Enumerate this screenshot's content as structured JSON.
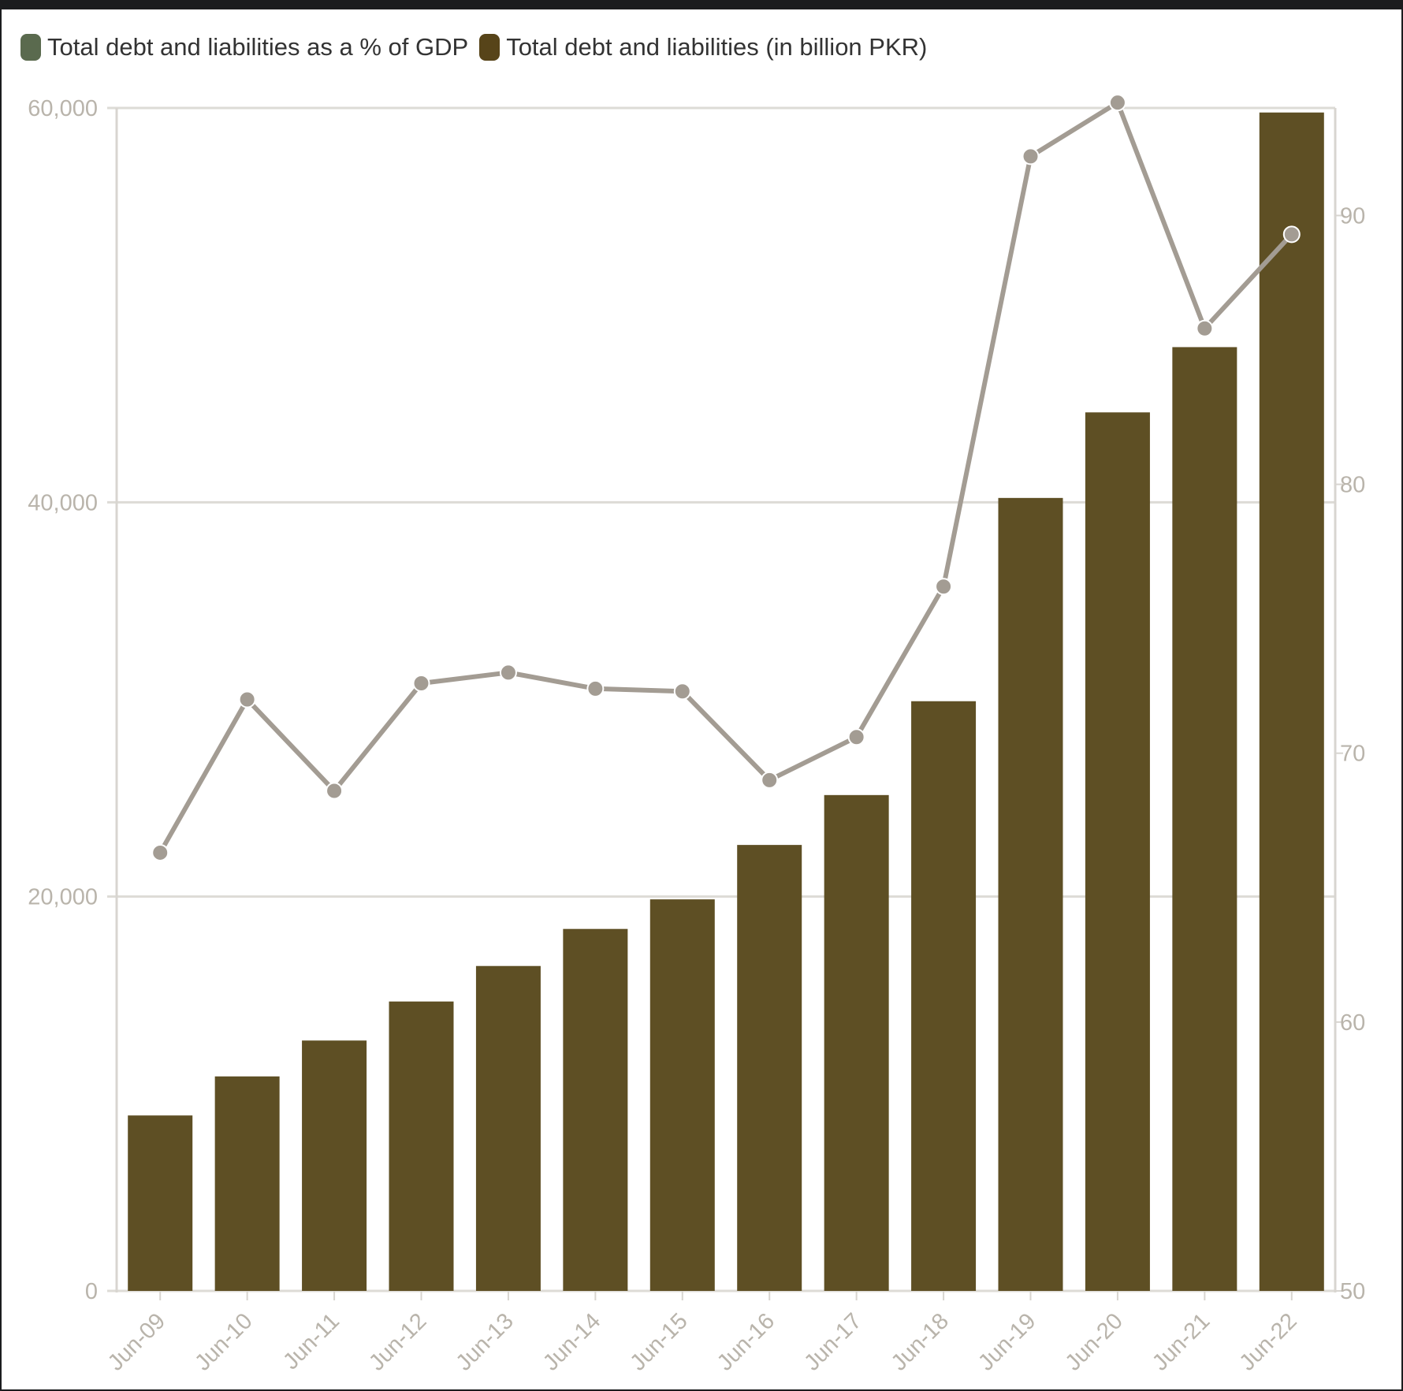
{
  "chart_data": {
    "type": "bar",
    "categories": [
      "Jun-09",
      "Jun-10",
      "Jun-11",
      "Jun-12",
      "Jun-13",
      "Jun-14",
      "Jun-15",
      "Jun-16",
      "Jun-17",
      "Jun-18",
      "Jun-19",
      "Jun-20",
      "Jun-21",
      "Jun-22"
    ],
    "series": [
      {
        "name": "Total debt and liabilities (in billion PKR)",
        "type": "bar",
        "axis": "left",
        "color": "#5e4f24",
        "values": [
          8900,
          10880,
          12700,
          14680,
          16480,
          18360,
          19860,
          22620,
          25150,
          29910,
          40220,
          44560,
          47870,
          59770
        ]
      },
      {
        "name": "Total debt and liabilities as a % of GDP",
        "type": "line",
        "axis": "right",
        "color": "#a39c93",
        "legend_color": "#5a6a4e",
        "values": [
          66.3,
          72.0,
          68.6,
          72.6,
          73.0,
          72.4,
          72.3,
          69.0,
          70.6,
          76.2,
          92.2,
          94.2,
          85.8,
          89.3
        ]
      }
    ],
    "left_axis": {
      "min": 0,
      "max": 60000,
      "ticks": [
        "0",
        "20,000",
        "40,000",
        "60,000"
      ],
      "tick_values": [
        0,
        20000,
        40000,
        60000
      ]
    },
    "right_axis": {
      "min": 50,
      "max": 94,
      "ticks": [
        "50",
        "60",
        "70",
        "80",
        "90"
      ],
      "tick_values": [
        50,
        60,
        70,
        80,
        90
      ]
    },
    "grid": true,
    "legend_position": "top-left"
  },
  "legend": {
    "items": [
      {
        "label": "Total debt and liabilities as a % of GDP",
        "color": "#5a6a4e"
      },
      {
        "label": "Total debt and liabilities (in billion PKR)",
        "color": "#574419"
      }
    ]
  },
  "colors": {
    "grid": "#dddbd6",
    "axis": "#d8d5d0",
    "tick_text": "#b9b4ab"
  }
}
